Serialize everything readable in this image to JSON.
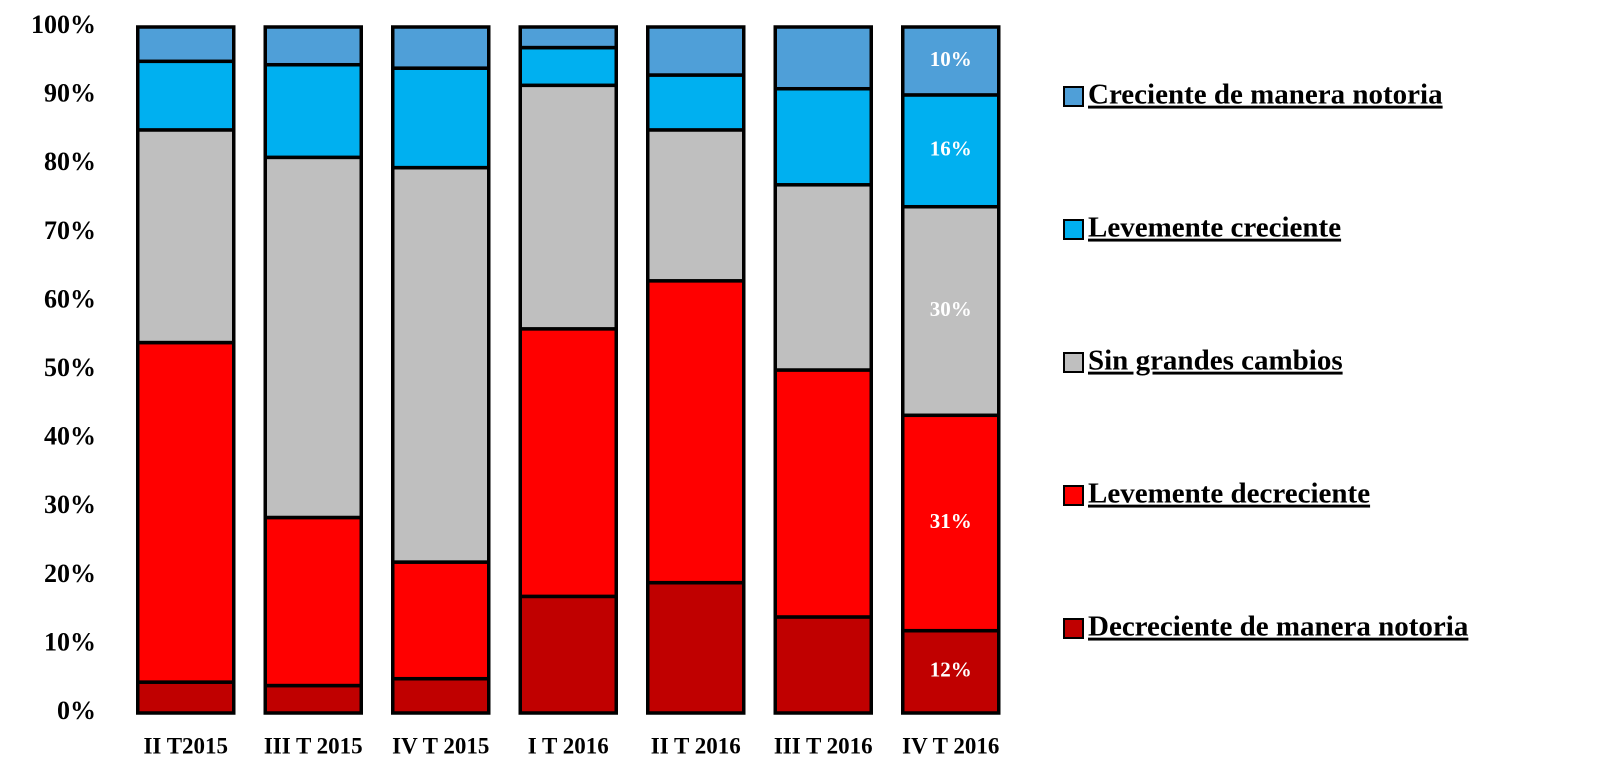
{
  "chart_data": {
    "type": "stacked_bar",
    "categories": [
      "II T2015",
      "III T 2015",
      "IV T 2015",
      "I T 2016",
      "II T 2016",
      "III T 2016",
      "IV T 2016"
    ],
    "ylim": [
      0,
      100
    ],
    "yticks": [
      {
        "value": 0,
        "label": "0%"
      },
      {
        "value": 10,
        "label": "10%"
      },
      {
        "value": 20,
        "label": "20%"
      },
      {
        "value": 30,
        "label": "30%"
      },
      {
        "value": 40,
        "label": "40%"
      },
      {
        "value": 50,
        "label": "50%"
      },
      {
        "value": 60,
        "label": "60%"
      },
      {
        "value": 70,
        "label": "70%"
      },
      {
        "value": 80,
        "label": "80%"
      },
      {
        "value": 90,
        "label": "90%"
      },
      {
        "value": 100,
        "label": "100%"
      }
    ],
    "legend": "right",
    "series": [
      {
        "name": "Decreciente de manera notoria",
        "color": "#c00000",
        "values": [
          4.5,
          4,
          5,
          17,
          19,
          14,
          12
        ],
        "value_labels": [
          null,
          null,
          null,
          null,
          null,
          null,
          "12%"
        ]
      },
      {
        "name": "Levemente decreciente",
        "color": "#ff0000",
        "values": [
          49.5,
          24.5,
          17,
          39,
          44,
          36,
          31.4
        ],
        "value_labels": [
          null,
          null,
          null,
          null,
          null,
          null,
          "31%"
        ]
      },
      {
        "name": "Sin grandes cambios",
        "color": "#bfbfbf",
        "values": [
          31,
          52.5,
          57.5,
          35.5,
          22,
          27,
          30.4
        ],
        "value_labels": [
          null,
          null,
          null,
          null,
          null,
          null,
          "30%"
        ]
      },
      {
        "name": "Levemente creciente",
        "color": "#00b0f0",
        "values": [
          10,
          13.5,
          14.5,
          5.5,
          8,
          14,
          16.3
        ],
        "value_labels": [
          null,
          null,
          null,
          null,
          null,
          null,
          "16%"
        ]
      },
      {
        "name": "Creciente de manera notoria",
        "color": "#4f9fd8",
        "values": [
          5,
          5.5,
          6,
          3,
          7,
          9,
          9.9
        ],
        "value_labels": [
          null,
          null,
          null,
          null,
          null,
          null,
          "10%"
        ]
      }
    ]
  }
}
